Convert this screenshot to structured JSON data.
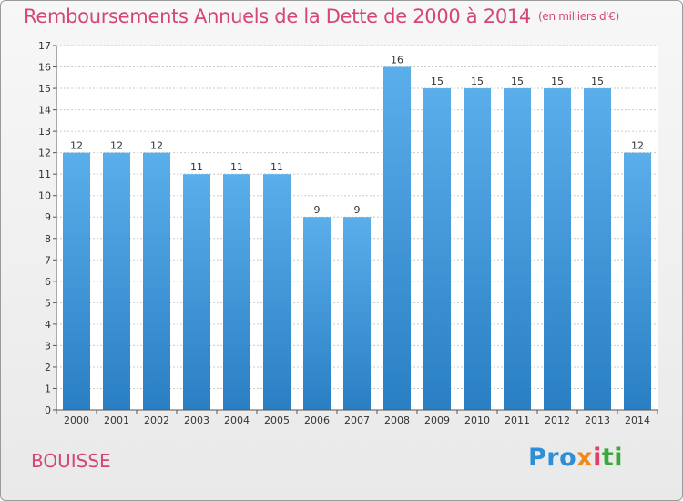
{
  "header": {
    "title": "Remboursements Annuels de la Dette de 2000 à 2014",
    "unit": "(en milliers d'€)"
  },
  "footer": {
    "place": "BOUISSE",
    "logo": {
      "p1": "Pro",
      "p2": "x",
      "p3": "i",
      "p4": "ti"
    }
  },
  "colors": {
    "title": "#d4457a",
    "bar_top": "#5aaeea",
    "bar_bottom": "#2a7fc4",
    "grid": "#c9c9c9"
  },
  "chart_data": {
    "type": "bar",
    "title": "Remboursements Annuels de la Dette de 2000 à 2014",
    "subtitle": "(en milliers d'€)",
    "xlabel": "",
    "ylabel": "",
    "categories": [
      "2000",
      "2001",
      "2002",
      "2003",
      "2004",
      "2005",
      "2006",
      "2007",
      "2008",
      "2009",
      "2010",
      "2011",
      "2012",
      "2013",
      "2014"
    ],
    "values": [
      12,
      12,
      12,
      11,
      11,
      11,
      9,
      9,
      16,
      15,
      15,
      15,
      15,
      15,
      12
    ],
    "ylim": [
      0,
      17
    ],
    "yticks": [
      0,
      1,
      2,
      3,
      4,
      5,
      6,
      7,
      8,
      9,
      10,
      11,
      12,
      13,
      14,
      15,
      16,
      17
    ],
    "grid": true
  }
}
